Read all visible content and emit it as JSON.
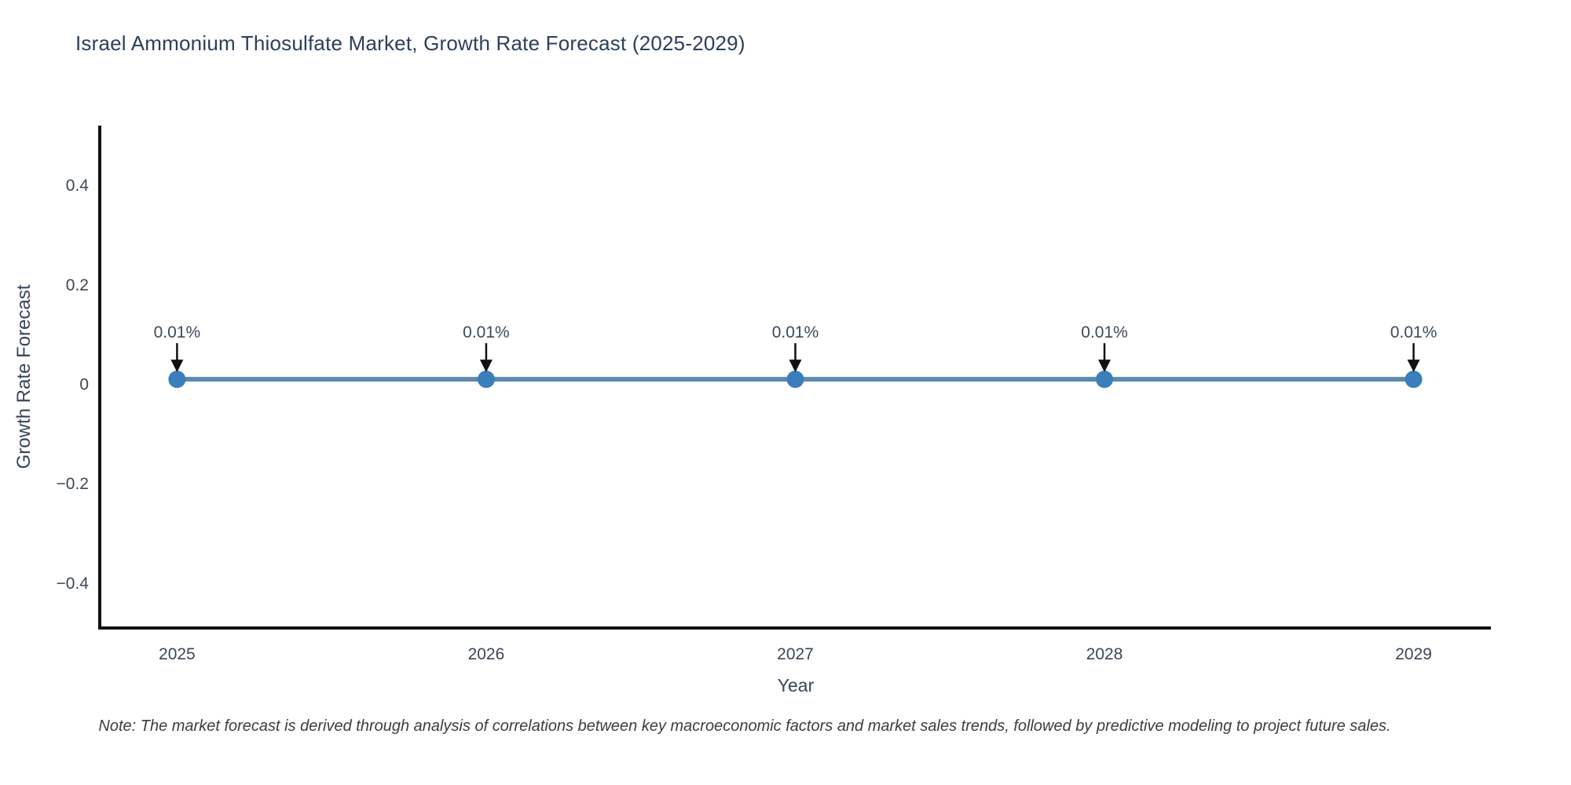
{
  "note": "Note: The market forecast is derived through analysis of correlations between key macroeconomic factors and market sales trends, followed by predictive modeling to project future sales.",
  "colors": {
    "marker": "#3a7ebb",
    "line": "#5d8aae",
    "axis": "#111111",
    "arrow": "#111111",
    "title_text": "#2b3f5c",
    "tick_text": "#3b4754",
    "annotation_text": "#3c4a5a",
    "background": "#ffffff"
  },
  "chart_data": {
    "type": "line",
    "title": "Israel Ammonium Thiosulfate Market, Growth Rate Forecast (2025-2029)",
    "xlabel": "Year",
    "ylabel": "Growth Rate Forecast",
    "x": [
      2025,
      2026,
      2027,
      2028,
      2029
    ],
    "series": [
      {
        "name": "Growth Rate Forecast",
        "values": [
          0.01,
          0.01,
          0.01,
          0.01,
          0.01
        ]
      }
    ],
    "annotations": [
      {
        "x": 2025,
        "y": 0.01,
        "label": "0.01%"
      },
      {
        "x": 2026,
        "y": 0.01,
        "label": "0.01%"
      },
      {
        "x": 2027,
        "y": 0.01,
        "label": "0.01%"
      },
      {
        "x": 2028,
        "y": 0.01,
        "label": "0.01%"
      },
      {
        "x": 2029,
        "y": 0.01,
        "label": "0.01%"
      }
    ],
    "xticks": [
      2025,
      2026,
      2027,
      2028,
      2029
    ],
    "yticks": [
      -0.4,
      -0.2,
      0,
      0.2,
      0.4
    ],
    "xlim": [
      2024.75,
      2029.25
    ],
    "ylim": [
      -0.49,
      0.52
    ],
    "grid": false,
    "legend": false,
    "marker_style": "circle",
    "line_width": 6,
    "marker_radius": 11
  }
}
